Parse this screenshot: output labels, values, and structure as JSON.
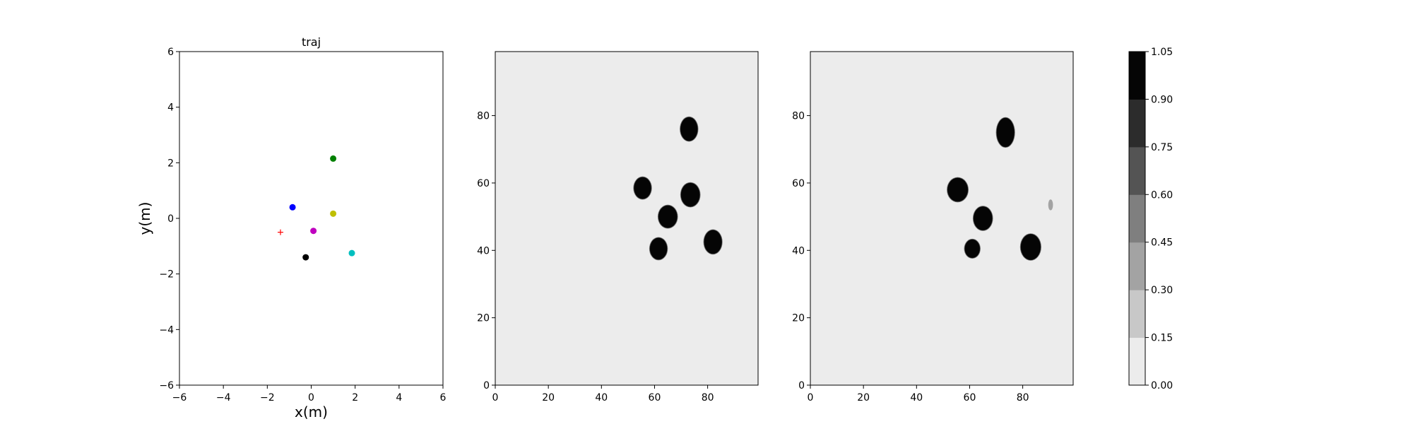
{
  "chart_data": [
    {
      "type": "scatter",
      "title": "traj",
      "xlabel": "x(m)",
      "ylabel": "y(m)",
      "xlim": [
        -6,
        6
      ],
      "ylim": [
        -6,
        6
      ],
      "xticks": [
        -6,
        -4,
        -2,
        0,
        2,
        4,
        6
      ],
      "yticks": [
        -6,
        -4,
        -2,
        0,
        2,
        4,
        6
      ],
      "xtick_labels": [
        "−6",
        "−4",
        "−2",
        "0",
        "2",
        "4",
        "6"
      ],
      "ytick_labels": [
        "−6",
        "−4",
        "−2",
        "0",
        "2",
        "4",
        "6"
      ],
      "points": [
        {
          "x": 1.0,
          "y": 2.15,
          "color": "#008000",
          "marker": "circle"
        },
        {
          "x": -0.85,
          "y": 0.4,
          "color": "#0000ff",
          "marker": "circle"
        },
        {
          "x": 1.0,
          "y": 0.17,
          "color": "#bfbf00",
          "marker": "circle"
        },
        {
          "x": 0.1,
          "y": -0.45,
          "color": "#bf00bf",
          "marker": "circle"
        },
        {
          "x": -0.25,
          "y": -1.4,
          "color": "#000000",
          "marker": "circle"
        },
        {
          "x": 1.85,
          "y": -1.25,
          "color": "#00bfbf",
          "marker": "circle"
        },
        {
          "x": -1.4,
          "y": -0.5,
          "color": "#ff0000",
          "marker": "plus"
        }
      ]
    },
    {
      "type": "heatmap",
      "xlim": [
        0,
        99
      ],
      "ylim": [
        0,
        99
      ],
      "xticks": [
        0,
        20,
        40,
        60,
        80
      ],
      "yticks": [
        0,
        20,
        40,
        60,
        80
      ],
      "xtick_labels": [
        "0",
        "20",
        "40",
        "60",
        "80"
      ],
      "ytick_labels": [
        "0",
        "20",
        "40",
        "60",
        "80"
      ],
      "background_value": 0.05,
      "blobs": [
        {
          "x": 73,
          "y": 76,
          "rx": 3.2,
          "ry": 3.5,
          "value": 1.0
        },
        {
          "x": 55.5,
          "y": 58.5,
          "rx": 3.2,
          "ry": 3.2,
          "value": 1.0
        },
        {
          "x": 73.5,
          "y": 56.5,
          "rx": 3.5,
          "ry": 3.5,
          "value": 1.0
        },
        {
          "x": 65,
          "y": 50,
          "rx": 3.5,
          "ry": 3.3,
          "value": 1.0
        },
        {
          "x": 61.5,
          "y": 40.5,
          "rx": 3.2,
          "ry": 3.2,
          "value": 1.0
        },
        {
          "x": 82,
          "y": 42.5,
          "rx": 3.3,
          "ry": 3.5,
          "value": 1.0
        }
      ]
    },
    {
      "type": "heatmap",
      "xlim": [
        0,
        99
      ],
      "ylim": [
        0,
        99
      ],
      "xticks": [
        0,
        20,
        40,
        60,
        80
      ],
      "yticks": [
        0,
        20,
        40,
        60,
        80
      ],
      "xtick_labels": [
        "0",
        "20",
        "40",
        "60",
        "80"
      ],
      "ytick_labels": [
        "0",
        "20",
        "40",
        "60",
        "80"
      ],
      "background_value": 0.05,
      "blobs": [
        {
          "x": 73.5,
          "y": 75,
          "rx": 3.3,
          "ry": 4.3,
          "value": 1.0
        },
        {
          "x": 55.5,
          "y": 58,
          "rx": 3.8,
          "ry": 3.5,
          "value": 1.0
        },
        {
          "x": 65,
          "y": 49.5,
          "rx": 3.5,
          "ry": 3.5,
          "value": 1.0
        },
        {
          "x": 61,
          "y": 40.5,
          "rx": 2.8,
          "ry": 2.7,
          "value": 1.0
        },
        {
          "x": 83,
          "y": 41,
          "rx": 3.7,
          "ry": 3.8,
          "value": 1.0
        },
        {
          "x": 90.5,
          "y": 53.5,
          "rx": 0.9,
          "ry": 1.6,
          "value": 0.3
        }
      ]
    },
    {
      "type": "colorbar",
      "levels": [
        0.0,
        0.15,
        0.3,
        0.45,
        0.6,
        0.75,
        0.9,
        1.05
      ],
      "tick_labels": [
        "0.00",
        "0.15",
        "0.30",
        "0.45",
        "0.60",
        "0.75",
        "0.90",
        "1.05"
      ],
      "colors": [
        "#ececec",
        "#c8c8c8",
        "#a3a3a3",
        "#7f7f7f",
        "#545454",
        "#2c2c2c",
        "#050505"
      ]
    }
  ]
}
